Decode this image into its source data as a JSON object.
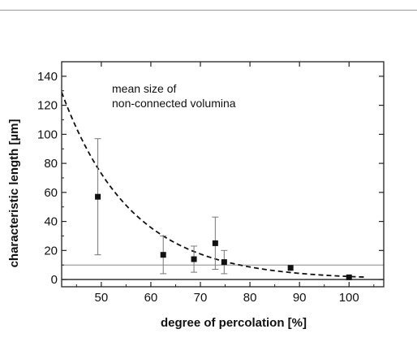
{
  "chart_data": {
    "type": "scatter",
    "xlabel": "degree of percolation [%]",
    "ylabel": "characteristic length [µm]",
    "xlim": [
      42,
      107
    ],
    "ylim": [
      -5,
      150
    ],
    "xticks": [
      50,
      60,
      70,
      80,
      90,
      100
    ],
    "yticks": [
      0,
      20,
      40,
      60,
      80,
      100,
      120,
      140
    ],
    "annotation": [
      "mean size of",
      "non-connected volumina"
    ],
    "grid": false,
    "series": [
      {
        "points": [
          {
            "x": 49.3,
            "y": 57,
            "err_low": 17,
            "err_high": 97
          },
          {
            "x": 62.5,
            "y": 17,
            "err_low": 4,
            "err_high": 30
          },
          {
            "x": 68.7,
            "y": 14,
            "err_low": 5,
            "err_high": 23
          },
          {
            "x": 73.0,
            "y": 25,
            "err_low": 7,
            "err_high": 43
          },
          {
            "x": 74.8,
            "y": 12,
            "err_low": 4,
            "err_high": 20
          },
          {
            "x": 88.2,
            "y": 8
          },
          {
            "x": 100.0,
            "y": 1.5
          }
        ]
      }
    ],
    "fit_curve": {
      "style": "dashed",
      "model": "exponential decay",
      "a": 129,
      "k": 0.0712,
      "x0": 42,
      "x_range": [
        42,
        103
      ]
    },
    "reference_lines": [
      0,
      10
    ]
  }
}
